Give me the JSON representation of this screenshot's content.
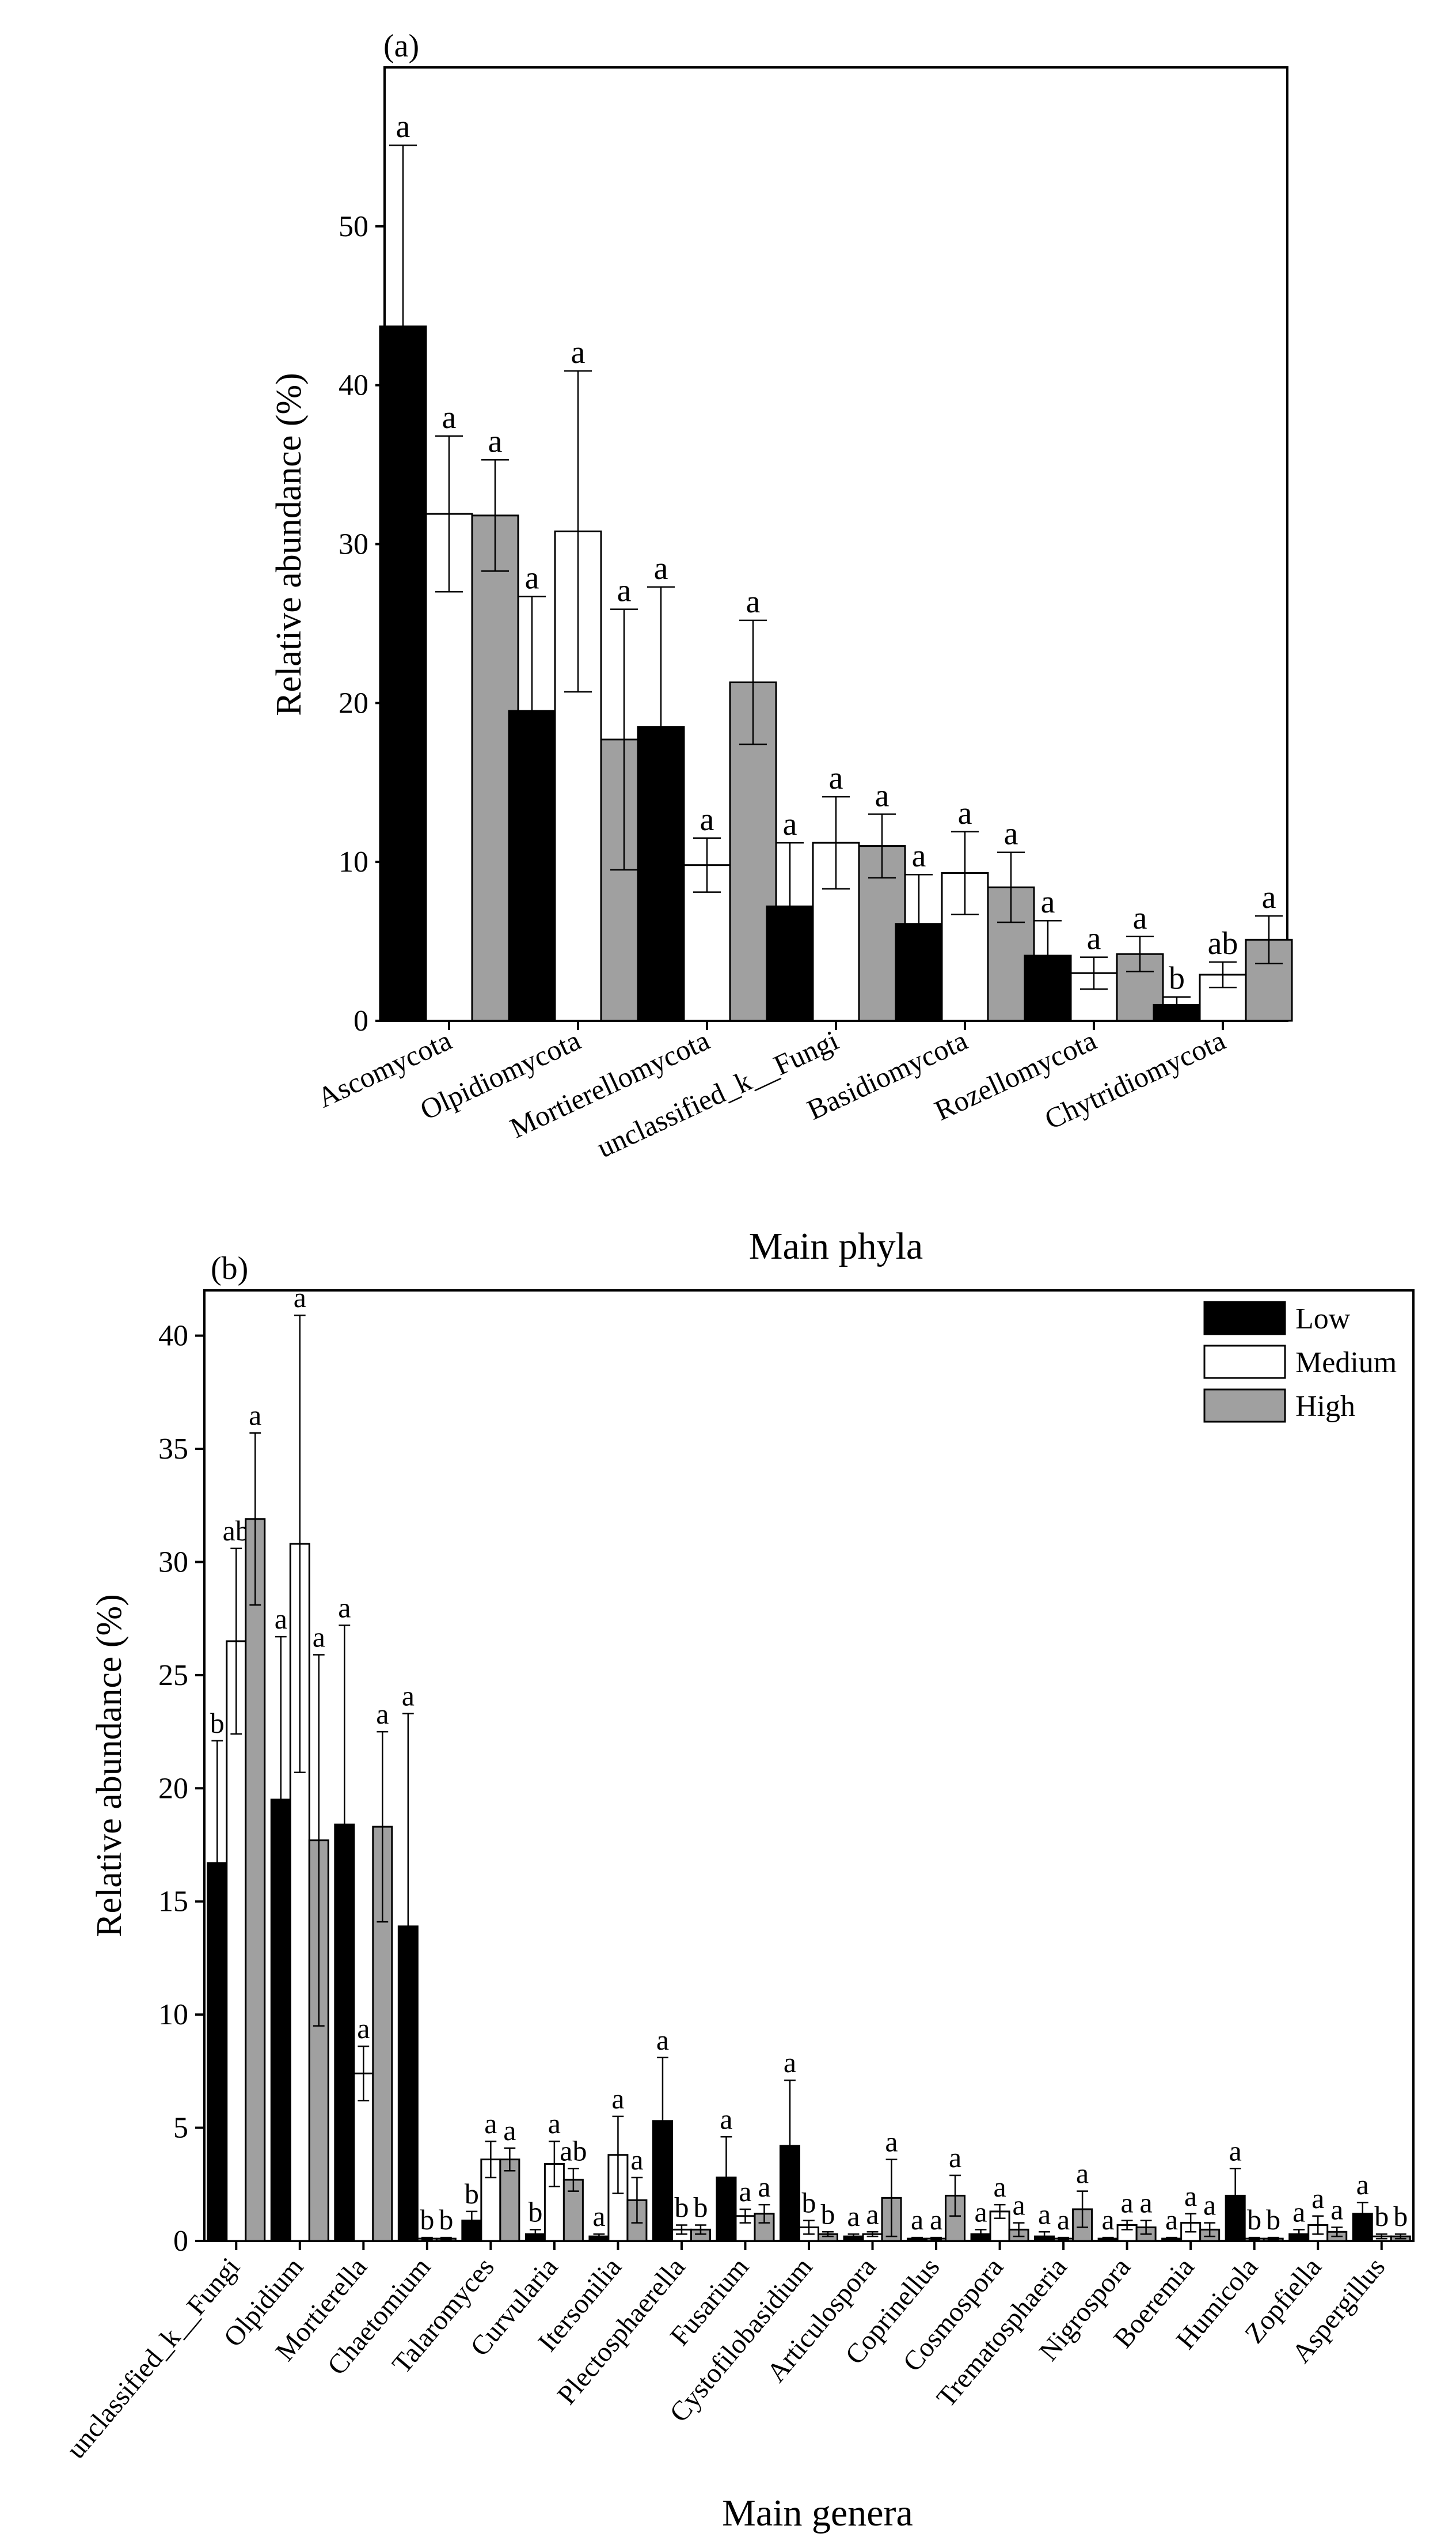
{
  "colors": {
    "Low": "#000000",
    "Medium": "#ffffff",
    "High": "#a0a0a0",
    "axis": "#000000"
  },
  "chart_data": [
    {
      "type": "bar",
      "panel_label": "(a)",
      "title": "",
      "xlabel": "Main phyla",
      "ylabel": "Relative abundance (%)",
      "ylim": [
        0,
        60
      ],
      "yticks": [
        0,
        10,
        20,
        30,
        40,
        50
      ],
      "categories": [
        "Ascomycota",
        "Olpidiomycota",
        "Mortierellomycota",
        "unclassified_k__Fungi",
        "Basidiomycota",
        "Rozellomycota",
        "Chytridiomycota"
      ],
      "series": [
        {
          "name": "Low",
          "values": [
            43.7,
            19.5,
            18.5,
            7.2,
            6.1,
            4.1,
            1.0
          ],
          "errors": [
            11.4,
            7.2,
            8.8,
            4.0,
            3.1,
            2.2,
            0.5
          ],
          "letters": [
            "a",
            "a",
            "a",
            "a",
            "a",
            "a",
            "b"
          ]
        },
        {
          "name": "Medium",
          "values": [
            31.9,
            30.8,
            9.8,
            11.2,
            9.3,
            3.0,
            2.9
          ],
          "errors": [
            4.9,
            10.1,
            1.7,
            2.9,
            2.6,
            1.0,
            0.8
          ],
          "letters": [
            "a",
            "a",
            "a",
            "a",
            "a",
            "a",
            "ab"
          ]
        },
        {
          "name": "High",
          "values": [
            31.8,
            17.7,
            21.3,
            11.0,
            8.4,
            4.2,
            5.1
          ],
          "errors": [
            3.5,
            8.2,
            3.9,
            2.0,
            2.2,
            1.1,
            1.5
          ],
          "letters": [
            "a",
            "a",
            "a",
            "a",
            "a",
            "a",
            "a"
          ]
        }
      ]
    },
    {
      "type": "bar",
      "panel_label": "(b)",
      "title": "",
      "xlabel": "Main genera",
      "ylabel": "Relative abundance (%)",
      "ylim": [
        0,
        42
      ],
      "yticks": [
        0,
        5,
        10,
        15,
        20,
        25,
        30,
        35,
        40
      ],
      "legend": [
        "Low",
        "Medium",
        "High"
      ],
      "legend_position": "top-right",
      "categories": [
        "unclassified_k__Fungi",
        "Olpidium",
        "Mortierella",
        "Chaetomium",
        "Talaromyces",
        "Curvularia",
        "Itersonilia",
        "Plectosphaerella",
        "Fusarium",
        "Cystofilobasidium",
        "Articulospora",
        "Coprinellus",
        "Cosmospora",
        "Trematosphaeria",
        "Nigrospora",
        "Boeremia",
        "Humicola",
        "Zopfiella",
        "Aspergillus"
      ],
      "series": [
        {
          "name": "Low",
          "values": [
            16.7,
            19.5,
            18.4,
            13.9,
            0.9,
            0.3,
            0.2,
            5.3,
            2.8,
            4.2,
            0.2,
            0.1,
            0.3,
            0.2,
            0.1,
            0.1,
            2.0,
            0.3,
            1.2
          ],
          "errors": [
            5.4,
            7.2,
            8.8,
            9.4,
            0.4,
            0.2,
            0.1,
            2.8,
            1.8,
            2.9,
            0.1,
            0.05,
            0.2,
            0.2,
            0.05,
            0.05,
            1.2,
            0.2,
            0.5
          ],
          "letters": [
            "b",
            "a",
            "a",
            "a",
            "b",
            "b",
            "a",
            "a",
            "a",
            "a",
            "a",
            "a",
            "a",
            "a",
            "a",
            "a",
            "a",
            "a",
            "a"
          ]
        },
        {
          "name": "Medium",
          "values": [
            26.5,
            30.8,
            7.4,
            0.1,
            3.6,
            3.4,
            3.8,
            0.5,
            1.1,
            0.6,
            0.3,
            0.1,
            1.3,
            0.1,
            0.7,
            0.8,
            0.1,
            0.7,
            0.2
          ],
          "errors": [
            4.1,
            10.1,
            1.2,
            0.05,
            0.8,
            1.0,
            1.7,
            0.2,
            0.3,
            0.3,
            0.1,
            0.05,
            0.3,
            0.05,
            0.2,
            0.4,
            0.05,
            0.4,
            0.1
          ],
          "letters": [
            "ab",
            "a",
            "a",
            "b",
            "a",
            "a",
            "a",
            "b",
            "a",
            "b",
            "a",
            "a",
            "a",
            "a",
            "a",
            "a",
            "b",
            "a",
            "b"
          ]
        },
        {
          "name": "High",
          "values": [
            31.9,
            17.7,
            18.3,
            0.1,
            3.6,
            2.7,
            1.8,
            0.5,
            1.2,
            0.3,
            1.9,
            2.0,
            0.5,
            1.4,
            0.6,
            0.5,
            0.1,
            0.4,
            0.2
          ],
          "errors": [
            3.8,
            8.2,
            4.2,
            0.05,
            0.5,
            0.5,
            1.0,
            0.2,
            0.4,
            0.1,
            1.7,
            0.9,
            0.3,
            0.8,
            0.3,
            0.3,
            0.05,
            0.2,
            0.1
          ],
          "letters": [
            "a",
            "a",
            "a",
            "b",
            "a",
            "ab",
            "a",
            "b",
            "a",
            "b",
            "a",
            "a",
            "a",
            "a",
            "a",
            "a",
            "b",
            "a",
            "b"
          ]
        }
      ]
    }
  ]
}
